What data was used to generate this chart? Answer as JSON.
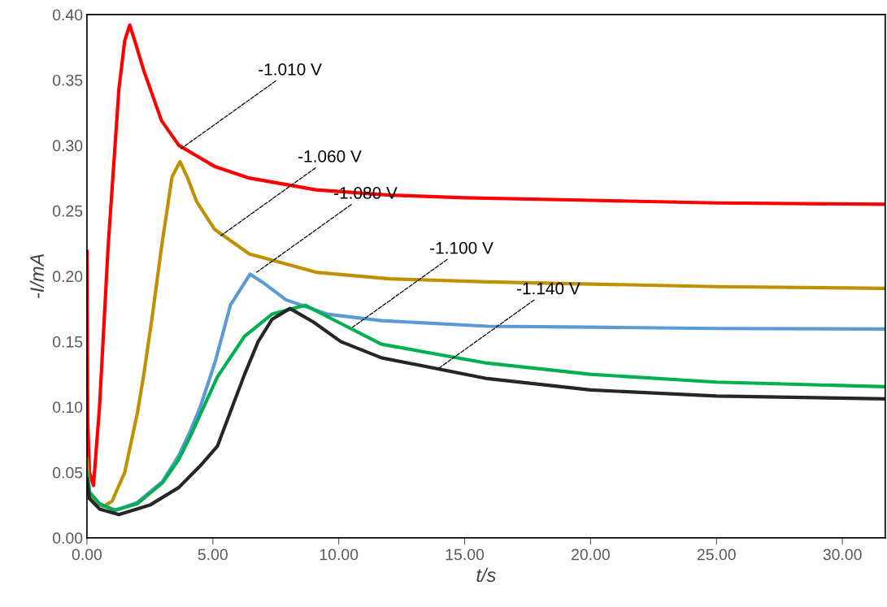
{
  "chart_data": {
    "type": "line",
    "xlabel": "t/s",
    "ylabel": "-I/mA",
    "xlim": [
      0,
      31.7
    ],
    "ylim": [
      0,
      0.4
    ],
    "xticks": [
      {
        "value": 0,
        "label": "0.00"
      },
      {
        "value": 5,
        "label": "5.00"
      },
      {
        "value": 10,
        "label": "10.00"
      },
      {
        "value": 15,
        "label": "15.00"
      },
      {
        "value": 20,
        "label": "20.00"
      },
      {
        "value": 25,
        "label": "25.00"
      },
      {
        "value": 30,
        "label": "30.00"
      }
    ],
    "yticks": [
      {
        "value": 0,
        "label": "0.00"
      },
      {
        "value": 0.05,
        "label": "0.05"
      },
      {
        "value": 0.1,
        "label": "0.10"
      },
      {
        "value": 0.15,
        "label": "0.15"
      },
      {
        "value": 0.2,
        "label": "0.20"
      },
      {
        "value": 0.25,
        "label": "0.25"
      },
      {
        "value": 0.3,
        "label": "0.30"
      },
      {
        "value": 0.35,
        "label": "0.35"
      },
      {
        "value": 0.4,
        "label": "0.40"
      }
    ],
    "grid": false,
    "marker": "none",
    "line_style": "solid",
    "series": [
      {
        "color": "#ff0000",
        "x": [
          0,
          0.03,
          0.1,
          0.26,
          0.5,
          0.84,
          1.27,
          1.5,
          1.7,
          1.9,
          2.26,
          2.96,
          3.65,
          5.06,
          6.45,
          9.1,
          12,
          15,
          20,
          25,
          31.7
        ],
        "values": [
          0.219,
          0.09,
          0.05,
          0.04,
          0.1,
          0.222,
          0.343,
          0.38,
          0.392,
          0.38,
          0.357,
          0.319,
          0.3,
          0.284,
          0.275,
          0.266,
          0.262,
          0.26,
          0.258,
          0.256,
          0.255
        ]
      },
      {
        "color": "#bf9000",
        "x": [
          0,
          0.1,
          0.3,
          0.65,
          1.0,
          1.5,
          2.0,
          2.26,
          2.6,
          2.96,
          3.38,
          3.7,
          4.0,
          4.36,
          5.06,
          6.45,
          9.1,
          12,
          15.9,
          20,
          25,
          31.7
        ],
        "values": [
          0.06,
          0.035,
          0.027,
          0.024,
          0.028,
          0.05,
          0.095,
          0.125,
          0.17,
          0.222,
          0.276,
          0.2875,
          0.275,
          0.257,
          0.236,
          0.217,
          0.203,
          0.198,
          0.1957,
          0.194,
          0.192,
          0.1907
        ]
      },
      {
        "color": "#5b9bd5",
        "x": [
          0,
          0.1,
          0.5,
          1.13,
          2.0,
          3.0,
          3.65,
          4.09,
          4.5,
          5.1,
          5.7,
          6.48,
          7.0,
          7.9,
          9.54,
          11.7,
          15.9,
          20,
          25,
          31.7
        ],
        "values": [
          0.05,
          0.035,
          0.026,
          0.021,
          0.027,
          0.043,
          0.063,
          0.081,
          0.1,
          0.135,
          0.178,
          0.2015,
          0.195,
          0.182,
          0.171,
          0.166,
          0.1617,
          0.161,
          0.16,
          0.1596
        ]
      },
      {
        "color": "#00b050",
        "x": [
          0,
          0.1,
          0.5,
          1.1,
          2.0,
          3.0,
          3.65,
          4.09,
          5.18,
          6.26,
          7.35,
          8.67,
          9.76,
          11.7,
          15.9,
          20,
          25,
          31.7
        ],
        "values": [
          0.05,
          0.035,
          0.026,
          0.021,
          0.026,
          0.042,
          0.06,
          0.077,
          0.123,
          0.154,
          0.171,
          0.1778,
          0.167,
          0.148,
          0.1335,
          0.125,
          0.119,
          0.1155
        ]
      },
      {
        "color": "#262626",
        "x": [
          0,
          0.1,
          0.5,
          1.27,
          2.5,
          3.65,
          4.5,
          5.18,
          6.26,
          6.8,
          7.35,
          8.06,
          8.99,
          10.08,
          11.7,
          15.9,
          20,
          25,
          31.7
        ],
        "values": [
          0.045,
          0.03,
          0.022,
          0.0177,
          0.025,
          0.0385,
          0.055,
          0.07,
          0.125,
          0.15,
          0.167,
          0.1753,
          0.165,
          0.15,
          0.1376,
          0.1217,
          0.113,
          0.1084,
          0.1062
        ]
      }
    ],
    "annotations": [
      {
        "text": "-1.010 V",
        "x": 3.74,
        "y": 0.2975
      },
      {
        "text": "-1.060 V",
        "x": 5.32,
        "y": 0.231
      },
      {
        "text": "-1.080 V",
        "x": 6.74,
        "y": 0.203
      },
      {
        "text": "-1.100 V",
        "x": 10.55,
        "y": 0.161
      },
      {
        "text": "-1.140 V",
        "x": 14.0,
        "y": 0.13
      }
    ]
  }
}
